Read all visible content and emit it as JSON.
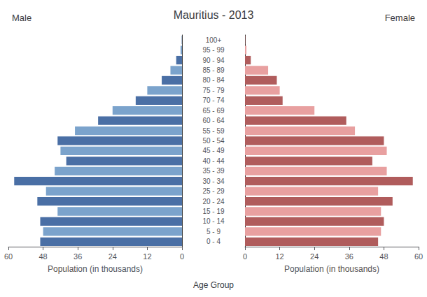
{
  "chart_data": {
    "type": "bar",
    "orientation": "horizontal",
    "title": "Mauritius - 2013",
    "categories": [
      "0 - 4",
      "5 - 9",
      "10 - 14",
      "15 - 19",
      "20 - 24",
      "25 - 29",
      "30 - 34",
      "35 - 39",
      "40 - 44",
      "45 - 49",
      "50 - 54",
      "55 - 59",
      "60 - 64",
      "65 - 69",
      "70 - 74",
      "75 - 79",
      "80 - 84",
      "85 - 89",
      "90 - 94",
      "95 - 99",
      "100+"
    ],
    "series": [
      {
        "name": "Male",
        "colors": [
          "#4a6fa5",
          "#7ba3cc",
          "#4a6fa5",
          "#7ba3cc",
          "#4a6fa5",
          "#7ba3cc",
          "#4a6fa5",
          "#7ba3cc",
          "#4a6fa5",
          "#7ba3cc",
          "#4a6fa5",
          "#7ba3cc",
          "#4a6fa5",
          "#7ba3cc",
          "#4a6fa5",
          "#7ba3cc",
          "#4a6fa5",
          "#7ba3cc",
          "#4a6fa5",
          "#7ba3cc",
          "#4a6fa5"
        ],
        "values": [
          49,
          48,
          49,
          43,
          50,
          47,
          58,
          44,
          40,
          42,
          43,
          37,
          29,
          24,
          16,
          12,
          7,
          4,
          2,
          0.5,
          0.1
        ]
      },
      {
        "name": "Female",
        "colors": [
          "#b05c5c",
          "#e8a0a0",
          "#b05c5c",
          "#e8a0a0",
          "#b05c5c",
          "#e8a0a0",
          "#b05c5c",
          "#e8a0a0",
          "#b05c5c",
          "#e8a0a0",
          "#b05c5c",
          "#e8a0a0",
          "#b05c5c",
          "#e8a0a0",
          "#b05c5c",
          "#e8a0a0",
          "#b05c5c",
          "#e8a0a0",
          "#b05c5c",
          "#e8a0a0",
          "#b05c5c"
        ],
        "values": [
          46,
          47,
          48,
          47,
          51,
          46,
          58,
          49,
          44,
          49,
          48,
          38,
          35,
          24,
          13,
          12,
          11,
          8,
          2,
          0.5,
          0.1
        ]
      }
    ],
    "xlabel_left": "Population (in thousands)",
    "xlabel_right": "Population (in thousands)",
    "ylabel": "Age Group",
    "xlim": [
      0,
      60
    ],
    "xticks": [
      0,
      12,
      24,
      36,
      48,
      60
    ],
    "grid": false
  }
}
